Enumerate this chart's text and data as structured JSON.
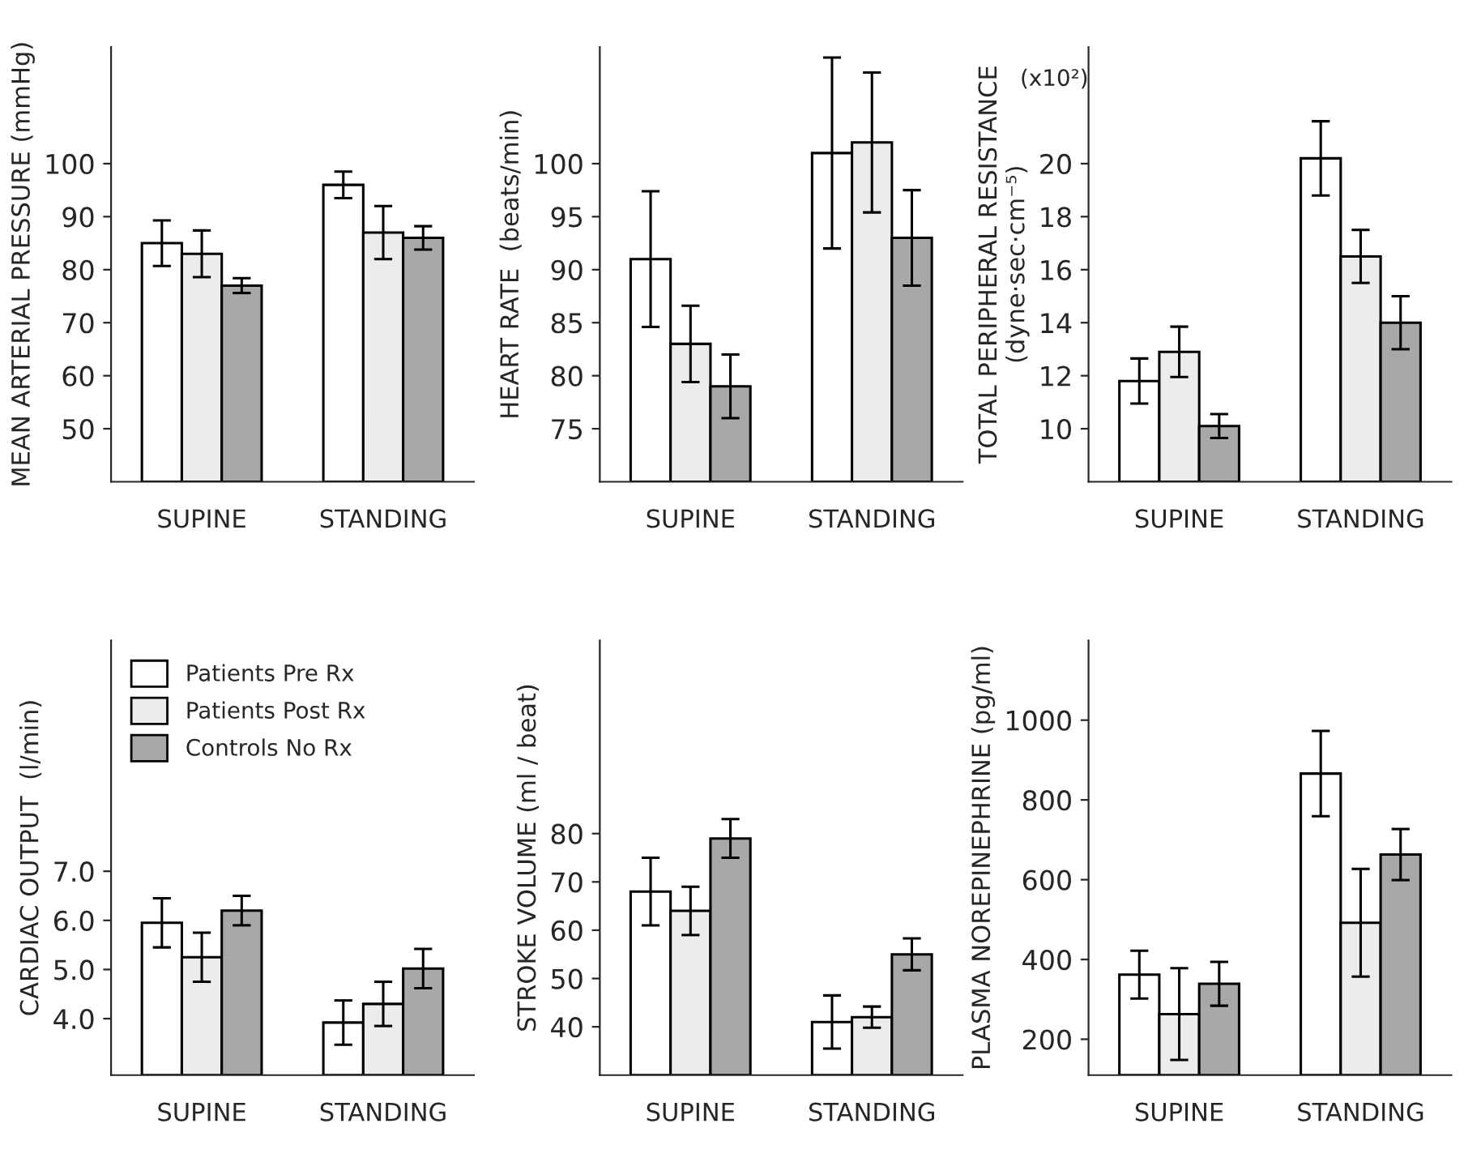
{
  "chart_data": [
    {
      "type": "bar",
      "ylabel": "MEAN ARTERIAL PRESSURE (mmHg)",
      "categories": [
        "SUPINE",
        "STANDING"
      ],
      "ylim": [
        40,
        122
      ],
      "yticks": [
        50,
        60,
        70,
        80,
        90,
        100
      ],
      "grid": false,
      "legend": false,
      "series": [
        {
          "color": "#ffffff",
          "values": [
            85,
            96
          ],
          "errors": [
            4.3,
            2.5
          ]
        },
        {
          "color": "#ececec",
          "values": [
            83,
            87
          ],
          "errors": [
            4.4,
            5
          ]
        },
        {
          "color": "#a8a8a8",
          "values": [
            77,
            86
          ],
          "errors": [
            1.4,
            2.2
          ]
        }
      ]
    },
    {
      "type": "bar",
      "ylabel": "HEART RATE  (beats/min)",
      "categories": [
        "SUPINE",
        "STANDING"
      ],
      "ylim": [
        70,
        111
      ],
      "yticks": [
        75,
        80,
        85,
        90,
        95,
        100
      ],
      "grid": false,
      "legend": false,
      "series": [
        {
          "color": "#ffffff",
          "values": [
            91,
            101
          ],
          "errors": [
            6.4,
            9
          ]
        },
        {
          "color": "#ececec",
          "values": [
            83,
            102
          ],
          "errors": [
            3.6,
            6.6
          ]
        },
        {
          "color": "#a8a8a8",
          "values": [
            79,
            93
          ],
          "errors": [
            3,
            4.5
          ]
        }
      ]
    },
    {
      "type": "bar",
      "ylabel": "TOTAL PERIPHERAL RESISTANCE\n(dyne·sec·cm⁻⁵)",
      "annotations": [
        "(x10²)"
      ],
      "categories": [
        "SUPINE",
        "STANDING"
      ],
      "ylim": [
        8,
        24.4
      ],
      "yticks": [
        10,
        12,
        14,
        16,
        18,
        20
      ],
      "grid": false,
      "legend": false,
      "series": [
        {
          "color": "#ffffff",
          "values": [
            11.8,
            20.2
          ],
          "errors": [
            0.85,
            1.4
          ]
        },
        {
          "color": "#ececec",
          "values": [
            12.9,
            16.5
          ],
          "errors": [
            0.95,
            1
          ]
        },
        {
          "color": "#a8a8a8",
          "values": [
            10.1,
            14
          ],
          "errors": [
            0.45,
            1
          ]
        }
      ]
    },
    {
      "type": "bar",
      "ylabel": "CARDIAC OUTPUT  (l/min)",
      "categories": [
        "SUPINE",
        "STANDING"
      ],
      "ylim": [
        2.85,
        11.7
      ],
      "yticks": [
        {
          "value": 4,
          "label": "4.0"
        },
        {
          "value": 5,
          "label": "5.0"
        },
        {
          "value": 6,
          "label": "6.0"
        },
        {
          "value": 7,
          "label": "7.0"
        }
      ],
      "grid": false,
      "legend": "top left",
      "series": [
        {
          "name": "Patients Pre Rx",
          "color": "#ffffff",
          "values": [
            5.95,
            3.92
          ],
          "errors": [
            0.5,
            0.45
          ]
        },
        {
          "name": "Patients Post Rx",
          "color": "#ececec",
          "values": [
            5.25,
            4.3
          ],
          "errors": [
            0.5,
            0.45
          ]
        },
        {
          "name": "Controls No Rx",
          "color": "#a8a8a8",
          "values": [
            6.2,
            5.02
          ],
          "errors": [
            0.3,
            0.4
          ]
        }
      ]
    },
    {
      "type": "bar",
      "ylabel": "STROKE VOLUME (ml / beat)",
      "categories": [
        "SUPINE",
        "STANDING"
      ],
      "ylim": [
        30,
        120
      ],
      "yticks": [
        40,
        50,
        60,
        70,
        80
      ],
      "grid": false,
      "legend": false,
      "series": [
        {
          "color": "#ffffff",
          "values": [
            68,
            41
          ],
          "errors": [
            7,
            5.5
          ]
        },
        {
          "color": "#ececec",
          "values": [
            64,
            42
          ],
          "errors": [
            5,
            2.2
          ]
        },
        {
          "color": "#a8a8a8",
          "values": [
            79,
            55
          ],
          "errors": [
            4,
            3.3
          ]
        }
      ]
    },
    {
      "type": "bar",
      "ylabel": "PLASMA NOREPINEPHRINE (pg/ml)",
      "categories": [
        "SUPINE",
        "STANDING"
      ],
      "ylim": [
        110,
        1200
      ],
      "yticks": [
        200,
        400,
        600,
        800,
        1000
      ],
      "grid": false,
      "legend": false,
      "series": [
        {
          "color": "#ffffff",
          "values": [
            362,
            866
          ],
          "errors": [
            60,
            107
          ]
        },
        {
          "color": "#ececec",
          "values": [
            263,
            492
          ],
          "errors": [
            115,
            135
          ]
        },
        {
          "color": "#a8a8a8",
          "values": [
            339,
            663
          ],
          "errors": [
            55,
            64
          ]
        }
      ]
    }
  ]
}
